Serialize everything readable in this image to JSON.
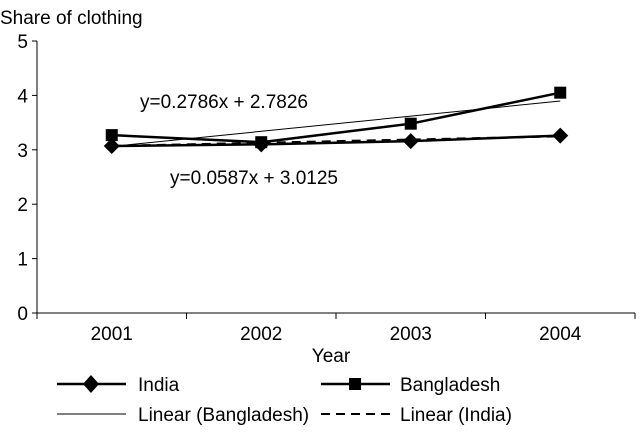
{
  "chart_data": {
    "type": "line",
    "ylabel": "Share of clothing",
    "xlabel": "Year",
    "categories": [
      "2001",
      "2002",
      "2003",
      "2004"
    ],
    "ylim": [
      0,
      5
    ],
    "yticks": [
      "0",
      "1",
      "2",
      "3",
      "4",
      "5"
    ],
    "grid": false,
    "legend_position": "bottom",
    "series": [
      {
        "name": "India",
        "values": [
          3.07,
          3.1,
          3.16,
          3.26
        ],
        "marker": "diamond",
        "style": "solid",
        "color": "#000000"
      },
      {
        "name": "Bangladesh",
        "values": [
          3.27,
          3.14,
          3.48,
          4.05
        ],
        "marker": "square",
        "style": "solid",
        "color": "#000000"
      }
    ],
    "trendlines": [
      {
        "name": "Linear (Bangladesh)",
        "slope": 0.2786,
        "intercept": 2.7826,
        "style": "thin",
        "equation": "y=0.2786x + 2.7826"
      },
      {
        "name": "Linear (India)",
        "slope": 0.0587,
        "intercept": 3.0125,
        "style": "dashed",
        "equation": "y=0.0587x + 3.0125"
      }
    ]
  }
}
